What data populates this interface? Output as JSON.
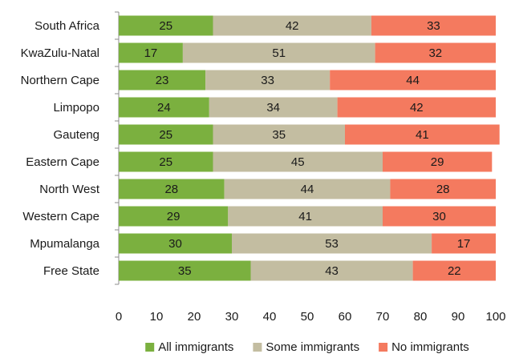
{
  "chart_data": {
    "type": "bar",
    "orientation": "horizontal",
    "stacked": true,
    "categories": [
      "South Africa",
      "KwaZulu-Natal",
      "Northern Cape",
      "Limpopo",
      "Gauteng",
      "Eastern Cape",
      "North West",
      "Western Cape",
      "Mpumalanga",
      "Free State"
    ],
    "series": [
      {
        "name": "All immigrants",
        "color": "#7bb03f",
        "values": [
          25,
          17,
          23,
          24,
          25,
          25,
          28,
          29,
          30,
          35
        ]
      },
      {
        "name": "Some immigrants",
        "color": "#c3bda1",
        "values": [
          42,
          51,
          33,
          34,
          35,
          45,
          44,
          41,
          53,
          43
        ]
      },
      {
        "name": "No immigrants",
        "color": "#f47a5f",
        "values": [
          33,
          32,
          44,
          42,
          41,
          29,
          28,
          30,
          17,
          22
        ]
      }
    ],
    "xlim": [
      0,
      100
    ],
    "xticks": [
      0,
      10,
      20,
      30,
      40,
      50,
      60,
      70,
      80,
      90,
      100
    ],
    "title": "",
    "xlabel": "",
    "ylabel": "",
    "grid": false,
    "legend_position": "bottom"
  }
}
